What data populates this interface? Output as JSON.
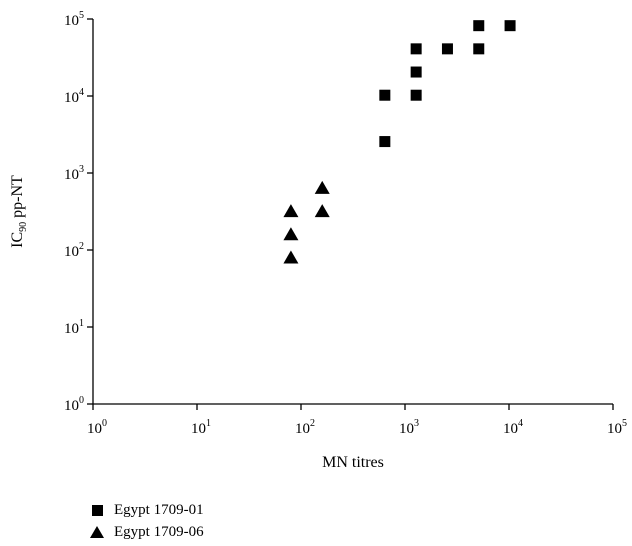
{
  "chart_data": {
    "type": "scatter",
    "title": "",
    "xlabel": "MN titres",
    "ylabel_main": "IC",
    "ylabel_sub": "90",
    "ylabel_rest": " pp-NT",
    "xscale": "log",
    "yscale": "log",
    "xlim": [
      1,
      100000
    ],
    "ylim": [
      1,
      100000
    ],
    "x_ticks": [
      {
        "base": "10",
        "exp": "0"
      },
      {
        "base": "10",
        "exp": "1"
      },
      {
        "base": "10",
        "exp": "2"
      },
      {
        "base": "10",
        "exp": "3"
      },
      {
        "base": "10",
        "exp": "4"
      },
      {
        "base": "10",
        "exp": "5"
      }
    ],
    "y_ticks": [
      {
        "base": "10",
        "exp": "0"
      },
      {
        "base": "10",
        "exp": "1"
      },
      {
        "base": "10",
        "exp": "2"
      },
      {
        "base": "10",
        "exp": "3"
      },
      {
        "base": "10",
        "exp": "4"
      },
      {
        "base": "10",
        "exp": "5"
      }
    ],
    "grid": false,
    "legend_position": "bottom-left",
    "series": [
      {
        "name": "Egypt 1709-01",
        "marker": "square",
        "color": "#000000",
        "points": [
          [
            640,
            2560
          ],
          [
            640,
            10240
          ],
          [
            1280,
            10240
          ],
          [
            1280,
            20480
          ],
          [
            1280,
            40960
          ],
          [
            2560,
            40960
          ],
          [
            5120,
            40960
          ],
          [
            5120,
            81920
          ],
          [
            10240,
            81920
          ]
        ]
      },
      {
        "name": "Egypt 1709-06",
        "marker": "triangle",
        "color": "#000000",
        "points": [
          [
            80,
            80
          ],
          [
            80,
            160
          ],
          [
            80,
            320
          ],
          [
            160,
            320
          ],
          [
            160,
            640
          ]
        ]
      }
    ]
  }
}
